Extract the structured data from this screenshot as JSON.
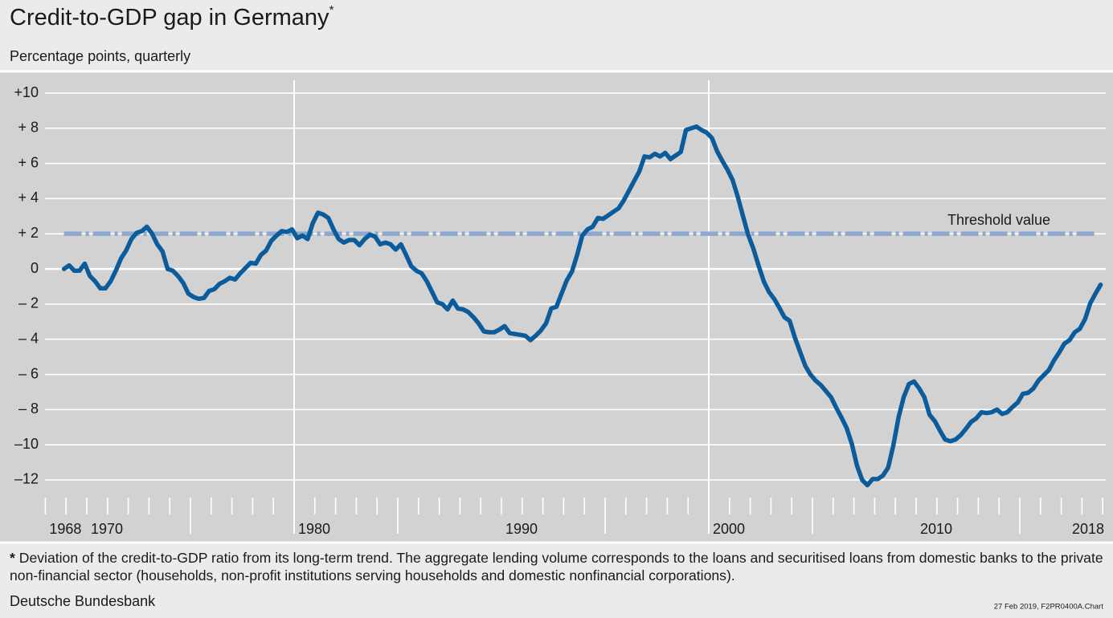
{
  "chart_data": {
    "type": "line",
    "title": "Credit-to-GDP gap in Germany",
    "title_mark": "*",
    "subtitle": "Percentage points, quarterly",
    "footnote_mark": "*",
    "footnote": "Deviation of the credit-to-GDP ratio from its long-term trend. The aggregate lending volume corresponds to the loans and securitised loans from domestic banks to the private non-financial sector (households, non-profit institutions serving households and domestic nonfinancial corporations).",
    "source": "Deutsche Bundesbank",
    "stamp": "27 Feb 2019, F2PR0400A.Chart",
    "annotation": "Threshold value",
    "threshold": 2,
    "threshold_color": "#8fa8cf",
    "grid": true,
    "xlim": [
      1968,
      2019
    ],
    "ylim": [
      -12.8,
      10.7
    ],
    "xticks": [
      1968,
      1970,
      1980,
      1990,
      2000,
      2010,
      2018
    ],
    "xminorticks": [
      1968,
      1969,
      1970,
      1971,
      1972,
      1973,
      1974,
      1975,
      1976,
      1977,
      1978,
      1979,
      1980,
      1981,
      1982,
      1983,
      1984,
      1985,
      1986,
      1987,
      1988,
      1989,
      1990,
      1991,
      1992,
      1993,
      1994,
      1995,
      1996,
      1997,
      1998,
      1999,
      2000,
      2001,
      2002,
      2003,
      2004,
      2005,
      2006,
      2007,
      2008,
      2009,
      2010,
      2011,
      2012,
      2013,
      2014,
      2015,
      2016,
      2017,
      2018,
      2019
    ],
    "xgrid": [
      1980,
      2000
    ],
    "yticks": [
      {
        "value": 10,
        "label": "+10"
      },
      {
        "value": 8,
        "label": "+ 8"
      },
      {
        "value": 6,
        "label": "+ 6"
      },
      {
        "value": 4,
        "label": "+ 4"
      },
      {
        "value": 2,
        "label": "+ 2"
      },
      0,
      {
        "value": -2,
        "label": "– 2"
      },
      {
        "value": -4,
        "label": "– 4"
      },
      {
        "value": -6,
        "label": "– 6"
      },
      {
        "value": -8,
        "label": "– 8"
      },
      {
        "value": -10,
        "label": "–10"
      },
      {
        "value": -12,
        "label": "–12"
      }
    ],
    "x": [
      1968.9,
      1969.15,
      1969.4,
      1969.65,
      1969.9,
      1970.15,
      1970.4,
      1970.65,
      1970.9,
      1971.15,
      1971.4,
      1971.65,
      1971.9,
      1972.15,
      1972.4,
      1972.65,
      1972.9,
      1973.15,
      1973.4,
      1973.65,
      1973.9,
      1974.15,
      1974.4,
      1974.65,
      1974.9,
      1975.15,
      1975.4,
      1975.65,
      1975.9,
      1976.15,
      1976.4,
      1976.65,
      1976.9,
      1977.15,
      1977.4,
      1977.65,
      1977.9,
      1978.15,
      1978.4,
      1978.65,
      1978.9,
      1979.15,
      1979.4,
      1979.65,
      1979.9,
      1980.15,
      1980.4,
      1980.65,
      1980.9,
      1981.15,
      1981.4,
      1981.65,
      1981.9,
      1982.15,
      1982.4,
      1982.65,
      1982.9,
      1983.15,
      1983.4,
      1983.65,
      1983.9,
      1984.15,
      1984.4,
      1984.65,
      1984.9,
      1985.15,
      1985.4,
      1985.65,
      1985.9,
      1986.15,
      1986.4,
      1986.65,
      1986.9,
      1987.15,
      1987.4,
      1987.65,
      1987.9,
      1988.15,
      1988.4,
      1988.65,
      1988.9,
      1989.15,
      1989.4,
      1989.65,
      1989.9,
      1990.15,
      1990.4,
      1990.65,
      1990.9,
      1991.15,
      1991.4,
      1991.65,
      1991.9,
      1992.15,
      1992.4,
      1992.65,
      1992.9,
      1993.15,
      1993.4,
      1993.65,
      1993.9,
      1994.15,
      1994.4,
      1994.65,
      1994.9,
      1995.15,
      1995.4,
      1995.65,
      1995.9,
      1996.15,
      1996.4,
      1996.65,
      1996.9,
      1997.15,
      1997.4,
      1997.65,
      1997.9,
      1998.15,
      1998.4,
      1998.65,
      1998.9,
      1999.15,
      1999.4,
      1999.65,
      1999.9,
      2000.15,
      2000.4,
      2000.65,
      2000.9,
      2001.15,
      2001.4,
      2001.65,
      2001.9,
      2002.15,
      2002.4,
      2002.65,
      2002.9,
      2003.15,
      2003.4,
      2003.65,
      2003.9,
      2004.15,
      2004.4,
      2004.65,
      2004.9,
      2005.15,
      2005.4,
      2005.65,
      2005.9,
      2006.15,
      2006.4,
      2006.65,
      2006.9,
      2007.15,
      2007.4,
      2007.65,
      2007.9,
      2008.15,
      2008.4,
      2008.65,
      2008.9,
      2009.15,
      2009.4,
      2009.65,
      2009.9,
      2010.15,
      2010.4,
      2010.65,
      2010.9,
      2011.15,
      2011.4,
      2011.65,
      2011.9,
      2012.15,
      2012.4,
      2012.65,
      2012.9,
      2013.15,
      2013.4,
      2013.65,
      2013.9,
      2014.15,
      2014.4,
      2014.65,
      2014.9,
      2015.15,
      2015.4,
      2015.65,
      2015.9,
      2016.15,
      2016.4,
      2016.65,
      2016.9,
      2017.15,
      2017.4,
      2017.65,
      2017.9,
      2018.15,
      2018.4,
      2018.65,
      2018.9
    ],
    "series": [
      {
        "name": "Credit-to-GDP gap",
        "color": "#0c5c9c",
        "values": [
          0,
          0.2,
          -0.1,
          -0.1,
          0.3,
          -0.4,
          -0.7,
          -1.1,
          -1.1,
          -0.7,
          -0.1,
          0.6,
          1.05,
          1.7,
          2.05,
          2.15,
          2.4,
          2.0,
          1.4,
          1.0,
          0,
          -0.1,
          -0.4,
          -0.8,
          -1.4,
          -1.6,
          -1.7,
          -1.65,
          -1.25,
          -1.15,
          -0.85,
          -0.7,
          -0.5,
          -0.6,
          -0.25,
          0.05,
          0.35,
          0.3,
          0.8,
          1.05,
          1.6,
          1.9,
          2.15,
          2.1,
          2.25,
          1.75,
          1.9,
          1.7,
          2.6,
          3.2,
          3.1,
          2.9,
          2.25,
          1.7,
          1.5,
          1.65,
          1.65,
          1.35,
          1.7,
          1.95,
          1.85,
          1.4,
          1.5,
          1.4,
          1.1,
          1.4,
          0.8,
          0.15,
          -0.1,
          -0.25,
          -0.7,
          -1.3,
          -1.9,
          -2.0,
          -2.3,
          -1.8,
          -2.25,
          -2.3,
          -2.45,
          -2.75,
          -3.1,
          -3.55,
          -3.6,
          -3.6,
          -3.45,
          -3.25,
          -3.65,
          -3.7,
          -3.75,
          -3.8,
          -4.05,
          -3.8,
          -3.5,
          -3.1,
          -2.25,
          -2.15,
          -1.4,
          -0.65,
          -0.15,
          0.8,
          1.9,
          2.25,
          2.4,
          2.9,
          2.85,
          3.05,
          3.25,
          3.45,
          3.9,
          4.45,
          5.0,
          5.55,
          6.4,
          6.35,
          6.55,
          6.4,
          6.6,
          6.25,
          6.45,
          6.65,
          7.9,
          8.0,
          8.1,
          7.9,
          7.75,
          7.45,
          6.7,
          6.15,
          5.65,
          5.05,
          4.1,
          3.0,
          1.95,
          1.15,
          0.2,
          -0.7,
          -1.3,
          -1.7,
          -2.2,
          -2.75,
          -2.95,
          -3.9,
          -4.7,
          -5.5,
          -6.0,
          -6.35,
          -6.6,
          -6.95,
          -7.3,
          -7.9,
          -8.45,
          -9.05,
          -9.95,
          -11.2,
          -12.0,
          -12.3,
          -11.95,
          -11.95,
          -11.75,
          -11.3,
          -10.05,
          -8.45,
          -7.3,
          -6.55,
          -6.4,
          -6.8,
          -7.3,
          -8.3,
          -8.65,
          -9.2,
          -9.7,
          -9.8,
          -9.7,
          -9.45,
          -9.1,
          -8.7,
          -8.5,
          -8.15,
          -8.2,
          -8.15,
          -8.0,
          -8.25,
          -8.15,
          -7.85,
          -7.6,
          -7.1,
          -7.05,
          -6.8,
          -6.35,
          -6.05,
          -5.75,
          -5.2,
          -4.75,
          -4.25,
          -4.05,
          -3.6,
          -3.4,
          -2.85,
          -1.95,
          -1.4,
          -0.9
        ]
      }
    ]
  }
}
